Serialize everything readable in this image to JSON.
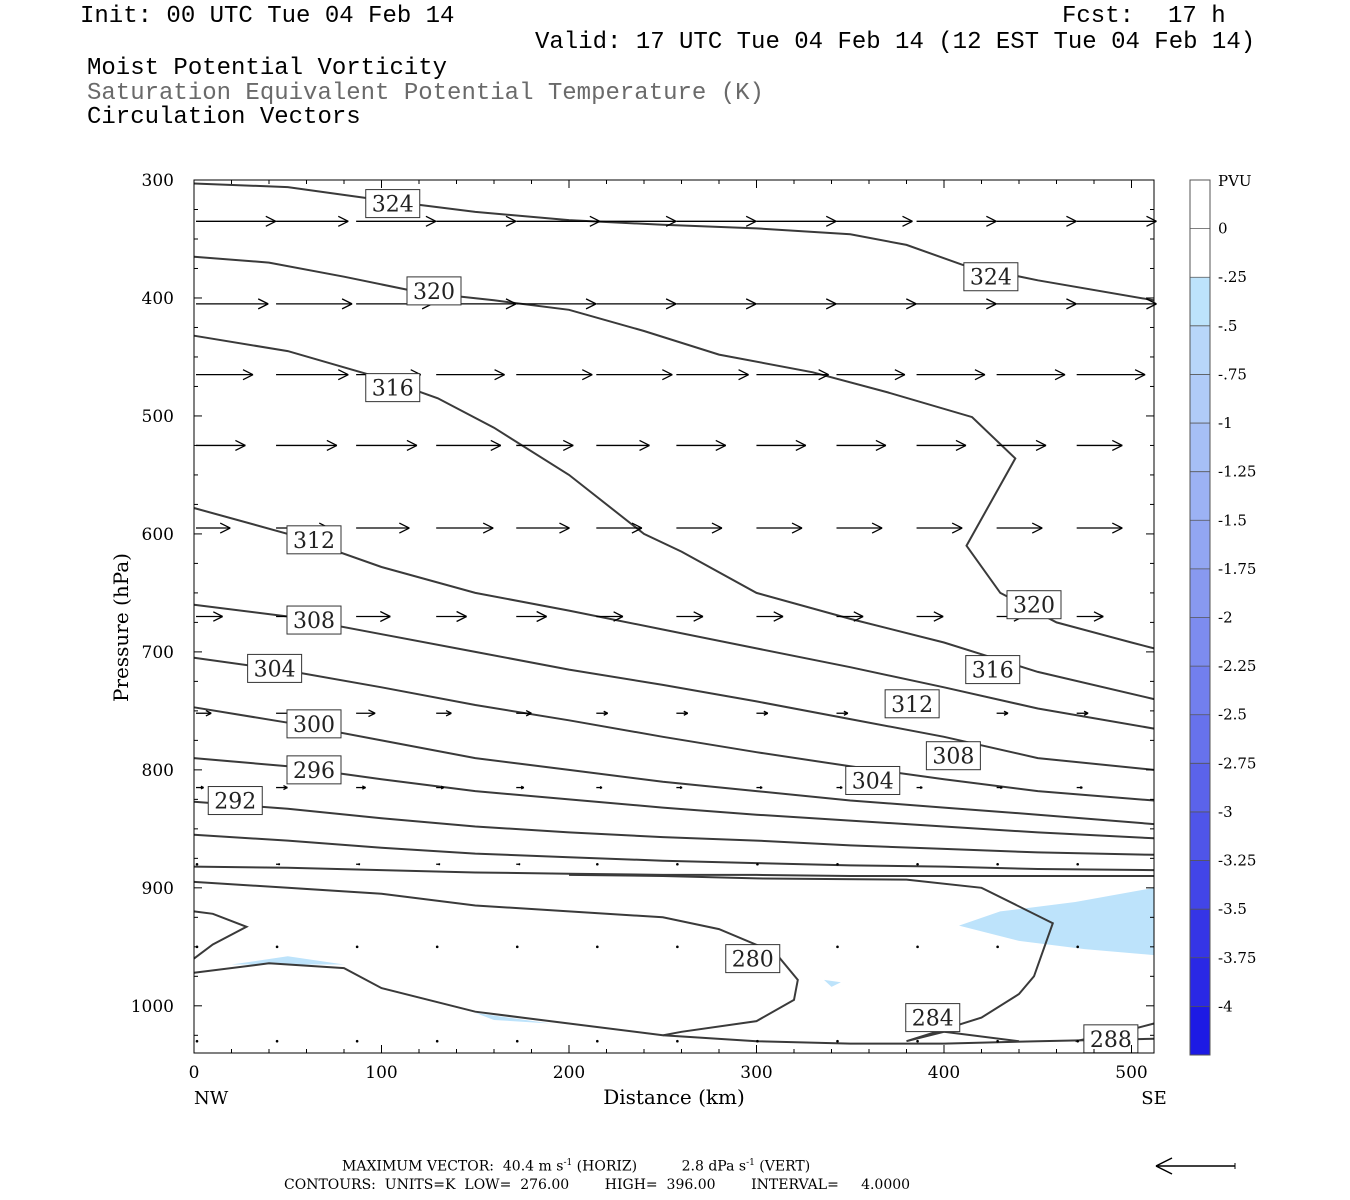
{
  "header": {
    "init": "Init: 00 UTC Tue 04 Feb 14",
    "fcst_label": "Fcst:",
    "fcst_value": "17 h",
    "valid": "Valid: 17 UTC Tue 04 Feb 14 (12 EST Tue 04 Feb 14)",
    "line1": "Moist Potential Vorticity",
    "line2": "Saturation Equivalent Potential Temperature (K)",
    "line3": "Circulation Vectors"
  },
  "footer": {
    "max_vector_label": "MAXIMUM VECTOR:",
    "max_vector_horiz": "40.4 m s",
    "horiz_exp": "-1",
    "horiz_tag": "(HORIZ)",
    "max_vector_vert": "2.8 dPa s",
    "vert_exp": "-1",
    "vert_tag": "(VERT)",
    "contours": "CONTOURS:  UNITS=K  LOW=  276.00        HIGH=  396.00        INTERVAL=     4.0000"
  },
  "chart_data": {
    "type": "contour-cross-section",
    "xlabel": "Distance (km)",
    "ylabel": "Pressure (hPa)",
    "xlim": [
      0,
      512
    ],
    "ylim": [
      300,
      1040
    ],
    "x_ticks": [
      0,
      100,
      200,
      300,
      400,
      500
    ],
    "y_ticks": [
      300,
      400,
      500,
      600,
      700,
      800,
      900,
      1000
    ],
    "x_end_labels": {
      "left": "NW",
      "right": "SE"
    },
    "colorbar": {
      "title": "PVU",
      "levels": [
        "0",
        "-.25",
        "-.5",
        "-.75",
        "-1",
        "-1.25",
        "-1.5",
        "-1.75",
        "-2",
        "-2.25",
        "-2.5",
        "-2.75",
        "-3",
        "-3.25",
        "-3.5",
        "-3.75",
        "-4"
      ],
      "colors": [
        "#ffffff",
        "#ffffff",
        "#bde3fb",
        "#b8d6fa",
        "#b0cbf8",
        "#a6bff6",
        "#9cb2f4",
        "#92a6f2",
        "#8899f0",
        "#7d8cef",
        "#727fee",
        "#6772ec",
        "#5b63ea",
        "#4f55e9",
        "#4245e8",
        "#3535e6",
        "#2a28e5",
        "#1d1ae4"
      ]
    },
    "colors": {
      "contour": "#3a3a3a",
      "pv_fill": "#bde3fb",
      "vector": "#000000"
    },
    "contours": [
      {
        "label": "324",
        "points": [
          [
            0,
            303
          ],
          [
            50,
            306
          ],
          [
            100,
            317
          ],
          [
            150,
            327
          ],
          [
            200,
            334
          ],
          [
            250,
            338
          ],
          [
            300,
            341
          ],
          [
            350,
            346
          ],
          [
            380,
            355
          ],
          [
            410,
            372
          ],
          [
            450,
            385
          ],
          [
            512,
            402
          ]
        ],
        "labels": [
          [
            106,
            320
          ],
          [
            425,
            382
          ]
        ]
      },
      {
        "label": "320",
        "points": [
          [
            0,
            365
          ],
          [
            40,
            370
          ],
          [
            80,
            382
          ],
          [
            120,
            395
          ],
          [
            160,
            402
          ],
          [
            200,
            410
          ],
          [
            240,
            428
          ],
          [
            280,
            448
          ],
          [
            330,
            463
          ],
          [
            370,
            480
          ],
          [
            415,
            501
          ],
          [
            438,
            536
          ],
          [
            412,
            610
          ],
          [
            430,
            650
          ],
          [
            460,
            675
          ],
          [
            500,
            692
          ],
          [
            512,
            697
          ]
        ],
        "labels": [
          [
            128,
            394
          ],
          [
            448,
            660
          ]
        ]
      },
      {
        "label": "316",
        "points": [
          [
            0,
            432
          ],
          [
            50,
            445
          ],
          [
            100,
            468
          ],
          [
            130,
            485
          ],
          [
            160,
            510
          ],
          [
            200,
            550
          ],
          [
            240,
            600
          ],
          [
            260,
            615
          ],
          [
            300,
            650
          ],
          [
            350,
            672
          ],
          [
            400,
            692
          ],
          [
            450,
            717
          ],
          [
            512,
            740
          ]
        ],
        "labels": [
          [
            106,
            476
          ],
          [
            426,
            715
          ]
        ]
      },
      {
        "label": "312",
        "points": [
          [
            0,
            578
          ],
          [
            50,
            600
          ],
          [
            100,
            628
          ],
          [
            150,
            650
          ],
          [
            200,
            665
          ],
          [
            250,
            681
          ],
          [
            300,
            697
          ],
          [
            350,
            713
          ],
          [
            400,
            730
          ],
          [
            450,
            748
          ],
          [
            512,
            765
          ]
        ],
        "labels": [
          [
            64,
            605
          ],
          [
            383,
            744
          ]
        ]
      },
      {
        "label": "308",
        "points": [
          [
            0,
            660
          ],
          [
            50,
            670
          ],
          [
            100,
            685
          ],
          [
            150,
            700
          ],
          [
            200,
            715
          ],
          [
            250,
            728
          ],
          [
            300,
            742
          ],
          [
            350,
            757
          ],
          [
            400,
            772
          ],
          [
            450,
            790
          ],
          [
            512,
            800
          ]
        ],
        "labels": [
          [
            64,
            673
          ],
          [
            405,
            788
          ]
        ]
      },
      {
        "label": "304",
        "points": [
          [
            0,
            705
          ],
          [
            50,
            716
          ],
          [
            100,
            730
          ],
          [
            150,
            745
          ],
          [
            200,
            758
          ],
          [
            250,
            772
          ],
          [
            300,
            785
          ],
          [
            350,
            797
          ],
          [
            400,
            808
          ],
          [
            450,
            818
          ],
          [
            512,
            826
          ]
        ],
        "labels": [
          [
            43,
            714
          ],
          [
            362,
            809
          ]
        ]
      },
      {
        "label": "300",
        "points": [
          [
            0,
            747
          ],
          [
            50,
            760
          ],
          [
            100,
            775
          ],
          [
            150,
            790
          ],
          [
            200,
            800
          ],
          [
            250,
            810
          ],
          [
            300,
            818
          ],
          [
            350,
            826
          ],
          [
            400,
            832
          ],
          [
            450,
            838
          ],
          [
            512,
            846
          ]
        ],
        "labels": [
          [
            64,
            761
          ]
        ]
      },
      {
        "label": "296",
        "points": [
          [
            0,
            790
          ],
          [
            50,
            797
          ],
          [
            100,
            808
          ],
          [
            150,
            818
          ],
          [
            200,
            825
          ],
          [
            250,
            832
          ],
          [
            300,
            838
          ],
          [
            350,
            843
          ],
          [
            400,
            848
          ],
          [
            450,
            853
          ],
          [
            512,
            858
          ]
        ],
        "labels": [
          [
            64,
            800
          ]
        ]
      },
      {
        "label": "292",
        "points": [
          [
            0,
            827
          ],
          [
            50,
            833
          ],
          [
            100,
            841
          ],
          [
            150,
            848
          ],
          [
            200,
            853
          ],
          [
            250,
            857
          ],
          [
            300,
            860
          ],
          [
            350,
            864
          ],
          [
            400,
            867
          ],
          [
            450,
            870
          ],
          [
            512,
            872
          ]
        ],
        "labels": [
          [
            22,
            826
          ]
        ]
      },
      {
        "label": "",
        "points": [
          [
            0,
            855
          ],
          [
            50,
            860
          ],
          [
            100,
            866
          ],
          [
            150,
            871
          ],
          [
            200,
            874
          ],
          [
            250,
            877
          ],
          [
            300,
            879
          ],
          [
            350,
            881
          ],
          [
            400,
            882
          ],
          [
            450,
            884
          ],
          [
            512,
            885
          ]
        ],
        "labels": []
      },
      {
        "label": "",
        "points": [
          [
            0,
            882
          ],
          [
            50,
            883
          ],
          [
            100,
            885
          ],
          [
            150,
            887
          ],
          [
            200,
            888
          ],
          [
            250,
            889
          ],
          [
            300,
            889
          ],
          [
            350,
            890
          ],
          [
            400,
            890
          ],
          [
            450,
            890
          ],
          [
            512,
            890
          ]
        ],
        "labels": []
      },
      {
        "label": "280",
        "points": [
          [
            0,
            895
          ],
          [
            50,
            900
          ],
          [
            100,
            905
          ],
          [
            150,
            915
          ],
          [
            200,
            920
          ],
          [
            250,
            925
          ],
          [
            280,
            935
          ],
          [
            310,
            955
          ],
          [
            322,
            978
          ],
          [
            320,
            995
          ],
          [
            300,
            1013
          ],
          [
            260,
            1022
          ],
          [
            250,
            1025
          ]
        ],
        "labels": [
          [
            298,
            960
          ]
        ]
      },
      {
        "label": "284",
        "points": [
          [
            0,
            972
          ],
          [
            40,
            964
          ],
          [
            80,
            968
          ],
          [
            100,
            985
          ],
          [
            150,
            1005
          ],
          [
            200,
            1015
          ],
          [
            250,
            1025
          ],
          [
            300,
            1030
          ],
          [
            350,
            1032
          ],
          [
            400,
            1032
          ],
          [
            450,
            1030
          ],
          [
            512,
            1028
          ]
        ],
        "labels": [
          [
            394,
            1010
          ]
        ]
      },
      {
        "label": "",
        "points": [
          [
            440,
            1030
          ],
          [
            400,
            1022
          ],
          [
            380,
            1030
          ],
          [
            420,
            1010
          ],
          [
            440,
            990
          ],
          [
            448,
            975
          ],
          [
            458,
            930
          ],
          [
            420,
            900
          ],
          [
            380,
            893
          ],
          [
            300,
            892
          ],
          [
            250,
            890
          ],
          [
            200,
            889
          ]
        ],
        "labels": []
      },
      {
        "label": "288",
        "points": [
          [
            470,
            1030
          ],
          [
            500,
            1020
          ],
          [
            512,
            1015
          ]
        ],
        "labels": [
          [
            489,
            1028
          ]
        ]
      },
      {
        "label": "",
        "points": [
          [
            0,
            920
          ],
          [
            10,
            922
          ],
          [
            28,
            933
          ],
          [
            10,
            948
          ],
          [
            0,
            960
          ]
        ],
        "labels": []
      }
    ],
    "pv_regions": [
      {
        "value": "-.25",
        "points": [
          [
            408,
            932
          ],
          [
            430,
            920
          ],
          [
            470,
            912
          ],
          [
            512,
            900
          ],
          [
            512,
            957
          ],
          [
            475,
            952
          ],
          [
            440,
            945
          ]
        ]
      },
      {
        "value": "-.25",
        "points": [
          [
            20,
            965
          ],
          [
            50,
            958
          ],
          [
            80,
            965
          ],
          [
            50,
            965
          ]
        ]
      },
      {
        "value": "-.25",
        "points": [
          [
            150,
            1006
          ],
          [
            190,
            1015
          ],
          [
            160,
            1012
          ]
        ]
      },
      {
        "value": "-.25",
        "points": [
          [
            336,
            978
          ],
          [
            345,
            980
          ],
          [
            340,
            984
          ]
        ]
      }
    ],
    "vectors": {
      "rows": [
        {
          "p": 335,
          "u": [
            42,
            38,
            42,
            42,
            44,
            42,
            42,
            42,
            40,
            42,
            42,
            42,
            40
          ]
        },
        {
          "p": 405,
          "u": [
            38,
            40,
            40,
            42,
            42,
            42,
            42,
            42,
            42,
            42,
            42,
            42,
            40
          ]
        },
        {
          "p": 465,
          "u": [
            30,
            38,
            34,
            36,
            40,
            40,
            38,
            38,
            36,
            36,
            36,
            36,
            34
          ]
        },
        {
          "p": 525,
          "u": [
            26,
            32,
            32,
            34,
            30,
            28,
            26,
            26,
            26,
            26,
            26,
            24,
            24
          ]
        },
        {
          "p": 595,
          "u": [
            18,
            28,
            28,
            30,
            28,
            24,
            24,
            24,
            24,
            24,
            24,
            24,
            24
          ]
        },
        {
          "p": 670,
          "u": [
            14,
            18,
            18,
            16,
            16,
            14,
            14,
            14,
            14,
            14,
            14,
            14,
            14
          ]
        },
        {
          "p": 752,
          "u": [
            8,
            10,
            10,
            8,
            8,
            6,
            6,
            6,
            6,
            6,
            6,
            6,
            6
          ]
        },
        {
          "p": 815,
          "u": [
            4,
            6,
            5,
            4,
            4,
            3,
            3,
            3,
            3,
            3,
            3,
            3,
            3
          ]
        },
        {
          "p": 880,
          "u": [
            1,
            2,
            2,
            2,
            2,
            1,
            1,
            1,
            1,
            1,
            1,
            1,
            1
          ]
        },
        {
          "p": 950,
          "u": [
            0,
            0,
            0,
            0,
            0,
            0,
            0,
            0,
            0,
            0,
            0,
            0,
            0
          ]
        },
        {
          "p": 1030,
          "u": [
            0,
            0,
            0,
            0,
            0,
            0,
            0,
            0,
            0,
            0,
            0,
            0,
            0
          ]
        }
      ]
    }
  }
}
